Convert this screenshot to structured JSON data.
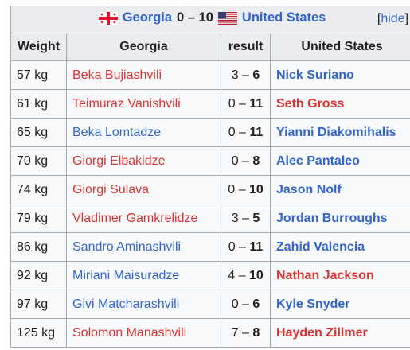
{
  "header": {
    "team_left": "Georgia",
    "score": "0 – 10",
    "team_right": "United States",
    "hide_open": "[",
    "hide_label": "hide",
    "hide_close": "]"
  },
  "columns": [
    "Weight",
    "Georgia",
    "result",
    "United States"
  ],
  "colors": {
    "loser": "#dd3333",
    "winner": "#3366cc",
    "header_bg": "#eaecf0",
    "border": "#a2a9b1"
  },
  "rows": [
    {
      "weight": "57 kg",
      "georgia": "Beka Bujiashvili",
      "georgia_color": "red",
      "score_left": "3",
      "score_sep": " – ",
      "score_right": "6",
      "bold_side": "right",
      "usa": "Nick Suriano",
      "usa_color": "blue"
    },
    {
      "weight": "61 kg",
      "georgia": "Teimuraz Vanishvili",
      "georgia_color": "red",
      "score_left": "0",
      "score_sep": " – ",
      "score_right": "11",
      "bold_side": "right",
      "usa": "Seth Gross",
      "usa_color": "red"
    },
    {
      "weight": "65 kg",
      "georgia": "Beka Lomtadze",
      "georgia_color": "blue",
      "score_left": "0",
      "score_sep": " – ",
      "score_right": "11",
      "bold_side": "right",
      "usa": "Yianni Diakomihalis",
      "usa_color": "blue"
    },
    {
      "weight": "70 kg",
      "georgia": "Giorgi Elbakidze",
      "georgia_color": "red",
      "score_left": "0",
      "score_sep": " – ",
      "score_right": "8",
      "bold_side": "right",
      "usa": "Alec Pantaleo",
      "usa_color": "blue"
    },
    {
      "weight": "74 kg",
      "georgia": "Giorgi Sulava",
      "georgia_color": "red",
      "score_left": "0",
      "score_sep": " – ",
      "score_right": "10",
      "bold_side": "right",
      "usa": "Jason Nolf",
      "usa_color": "blue"
    },
    {
      "weight": "79 kg",
      "georgia": "Vladimer Gamkrelidze",
      "georgia_color": "red",
      "score_left": "3",
      "score_sep": " – ",
      "score_right": "5",
      "bold_side": "right",
      "usa": "Jordan Burroughs",
      "usa_color": "blue"
    },
    {
      "weight": "86 kg",
      "georgia": "Sandro Aminashvili",
      "georgia_color": "blue",
      "score_left": "0",
      "score_sep": " – ",
      "score_right": "11",
      "bold_side": "right",
      "usa": "Zahid Valencia",
      "usa_color": "blue"
    },
    {
      "weight": "92 kg",
      "georgia": "Miriani Maisuradze",
      "georgia_color": "blue",
      "score_left": "4",
      "score_sep": " – ",
      "score_right": "10",
      "bold_side": "right",
      "usa": "Nathan Jackson",
      "usa_color": "red"
    },
    {
      "weight": "97 kg",
      "georgia": "Givi Matcharashvili",
      "georgia_color": "blue",
      "score_left": "0",
      "score_sep": " – ",
      "score_right": "6",
      "bold_side": "right",
      "usa": "Kyle Snyder",
      "usa_color": "blue"
    },
    {
      "weight": "125 kg",
      "georgia": "Solomon Manashvili",
      "georgia_color": "red",
      "score_left": "7",
      "score_sep": " – ",
      "score_right": "8",
      "bold_side": "right",
      "usa": "Hayden Zillmer",
      "usa_color": "red"
    }
  ]
}
